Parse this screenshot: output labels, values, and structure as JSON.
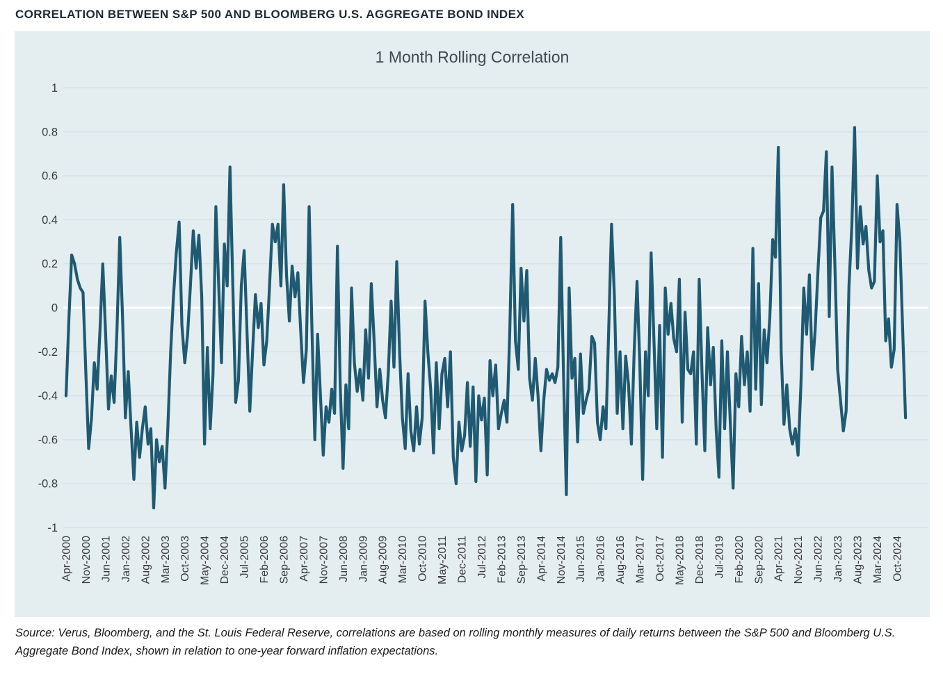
{
  "page": {
    "title": "CORRELATION BETWEEN S&P 500 AND BLOOMBERG U.S. AGGREGATE BOND INDEX",
    "source_note": "Source: Verus, Bloomberg, and the St. Louis Federal Reserve, correlations are based on rolling monthly measures of daily returns between the S&P 500 and Bloomberg U.S. Aggregate Bond Index, shown in relation to one-year forward inflation expectations."
  },
  "chart_data": {
    "type": "line",
    "title": "1 Month Rolling Correlation",
    "x_start": "Apr-2000",
    "x_end": "Jan-2025",
    "x_frequency": "monthly",
    "x_tick_interval_months": 7,
    "x_tick_labels": [
      "Apr-2000",
      "Nov-2000",
      "Jun-2001",
      "Jan-2002",
      "Aug-2002",
      "Mar-2003",
      "Oct-2003",
      "May-2004",
      "Dec-2004",
      "Jul-2005",
      "Feb-2006",
      "Sep-2006",
      "Apr-2007",
      "Nov-2007",
      "Jun-2008",
      "Jan-2009",
      "Aug-2009",
      "Mar-2010",
      "Oct-2010",
      "May-2011",
      "Dec-2011",
      "Jul-2012",
      "Feb-2013",
      "Sep-2013",
      "Apr-2014",
      "Nov-2014",
      "Jun-2015",
      "Jan-2016",
      "Aug-2016",
      "Mar-2017",
      "Oct-2017",
      "May-2018",
      "Dec-2018",
      "Jul-2019",
      "Feb-2020",
      "Sep-2020",
      "Apr-2021",
      "Nov-2021",
      "Jun-2022",
      "Jan-2023",
      "Aug-2023",
      "Mar-2024",
      "Oct-2024"
    ],
    "y_ticks": [
      1,
      0.8,
      0.6,
      0.4,
      0.2,
      0,
      -0.2,
      -0.4,
      -0.6,
      -0.8,
      -1
    ],
    "y_tick_labels": [
      "1",
      "0.8",
      "0.6",
      "0.4",
      "0.2",
      "0",
      "-0.2",
      "-0.4",
      "-0.6",
      "-0.8",
      "-1"
    ],
    "ylim": [
      -1,
      1
    ],
    "grid": true,
    "legend": "none",
    "colors": {
      "line": "#1f5a72",
      "plot_background": "#e4edf0",
      "gridline": "#d4e0e4",
      "zero_line": "#ffffff",
      "axis_text": "#3a3a3a",
      "title_text": "#3f4a50"
    },
    "series": [
      {
        "name": "1 Month Rolling Correlation",
        "values": [
          -0.4,
          -0.05,
          0.24,
          0.2,
          0.13,
          0.09,
          0.07,
          -0.3,
          -0.64,
          -0.5,
          -0.25,
          -0.37,
          -0.1,
          0.2,
          -0.12,
          -0.46,
          -0.31,
          -0.43,
          -0.1,
          0.32,
          -0.05,
          -0.5,
          -0.29,
          -0.55,
          -0.78,
          -0.52,
          -0.68,
          -0.55,
          -0.45,
          -0.62,
          -0.55,
          -0.91,
          -0.6,
          -0.7,
          -0.63,
          -0.82,
          -0.55,
          -0.2,
          0.05,
          0.25,
          0.39,
          -0.08,
          -0.25,
          -0.12,
          0.1,
          0.35,
          0.18,
          0.33,
          0.05,
          -0.62,
          -0.18,
          -0.55,
          -0.3,
          0.46,
          0.1,
          -0.25,
          0.29,
          0.1,
          0.64,
          0.1,
          -0.43,
          -0.33,
          0.1,
          0.26,
          -0.1,
          -0.47,
          -0.2,
          0.06,
          -0.09,
          0.02,
          -0.26,
          -0.15,
          0.1,
          0.38,
          0.3,
          0.38,
          0.1,
          0.56,
          0.15,
          -0.06,
          0.19,
          0.05,
          0.16,
          -0.1,
          -0.34,
          -0.19,
          0.46,
          -0.1,
          -0.6,
          -0.12,
          -0.4,
          -0.67,
          -0.45,
          -0.52,
          -0.37,
          -0.48,
          0.28,
          -0.35,
          -0.73,
          -0.35,
          -0.55,
          0.09,
          -0.25,
          -0.38,
          -0.28,
          -0.42,
          -0.1,
          -0.32,
          0.11,
          -0.15,
          -0.45,
          -0.28,
          -0.42,
          -0.5,
          -0.3,
          0.03,
          -0.27,
          0.21,
          -0.2,
          -0.5,
          -0.64,
          -0.3,
          -0.56,
          -0.65,
          -0.45,
          -0.62,
          -0.5,
          0.03,
          -0.2,
          -0.37,
          -0.66,
          -0.25,
          -0.55,
          -0.3,
          -0.23,
          -0.45,
          -0.2,
          -0.68,
          -0.8,
          -0.52,
          -0.65,
          -0.58,
          -0.34,
          -0.63,
          -0.36,
          -0.79,
          -0.4,
          -0.51,
          -0.41,
          -0.76,
          -0.24,
          -0.4,
          -0.26,
          -0.55,
          -0.48,
          -0.42,
          -0.52,
          -0.1,
          0.47,
          -0.15,
          -0.28,
          0.18,
          -0.06,
          0.17,
          -0.32,
          -0.42,
          -0.23,
          -0.4,
          -0.65,
          -0.42,
          -0.28,
          -0.33,
          -0.3,
          -0.34,
          -0.27,
          0.32,
          -0.3,
          -0.85,
          0.09,
          -0.32,
          -0.23,
          -0.61,
          -0.21,
          -0.48,
          -0.42,
          -0.37,
          -0.13,
          -0.16,
          -0.52,
          -0.6,
          -0.45,
          -0.55,
          -0.1,
          0.38,
          0.05,
          -0.48,
          -0.2,
          -0.55,
          -0.22,
          -0.35,
          -0.62,
          -0.2,
          0.12,
          -0.25,
          -0.78,
          -0.2,
          -0.4,
          0.25,
          -0.15,
          -0.55,
          -0.08,
          -0.68,
          0.09,
          -0.12,
          0.02,
          -0.14,
          -0.2,
          0.13,
          -0.52,
          -0.02,
          -0.28,
          -0.3,
          -0.2,
          -0.62,
          0.13,
          -0.3,
          -0.65,
          -0.09,
          -0.35,
          -0.18,
          -0.55,
          -0.77,
          -0.15,
          -0.55,
          -0.2,
          -0.52,
          -0.82,
          -0.3,
          -0.45,
          -0.13,
          -0.35,
          -0.2,
          -0.47,
          0.27,
          -0.37,
          0.11,
          -0.44,
          -0.1,
          -0.25,
          -0.04,
          0.31,
          0.23,
          0.73,
          -0.2,
          -0.53,
          -0.35,
          -0.55,
          -0.62,
          -0.55,
          -0.67,
          -0.35,
          0.09,
          -0.12,
          0.15,
          -0.28,
          -0.11,
          0.16,
          0.41,
          0.44,
          0.71,
          -0.04,
          0.64,
          0.2,
          -0.28,
          -0.42,
          -0.56,
          -0.47,
          0.1,
          0.37,
          0.82,
          0.18,
          0.46,
          0.29,
          0.37,
          0.17,
          0.09,
          0.12,
          0.6,
          0.3,
          0.35,
          -0.15,
          -0.05,
          -0.27,
          -0.19,
          0.47,
          0.3,
          -0.1,
          -0.5
        ]
      }
    ]
  }
}
